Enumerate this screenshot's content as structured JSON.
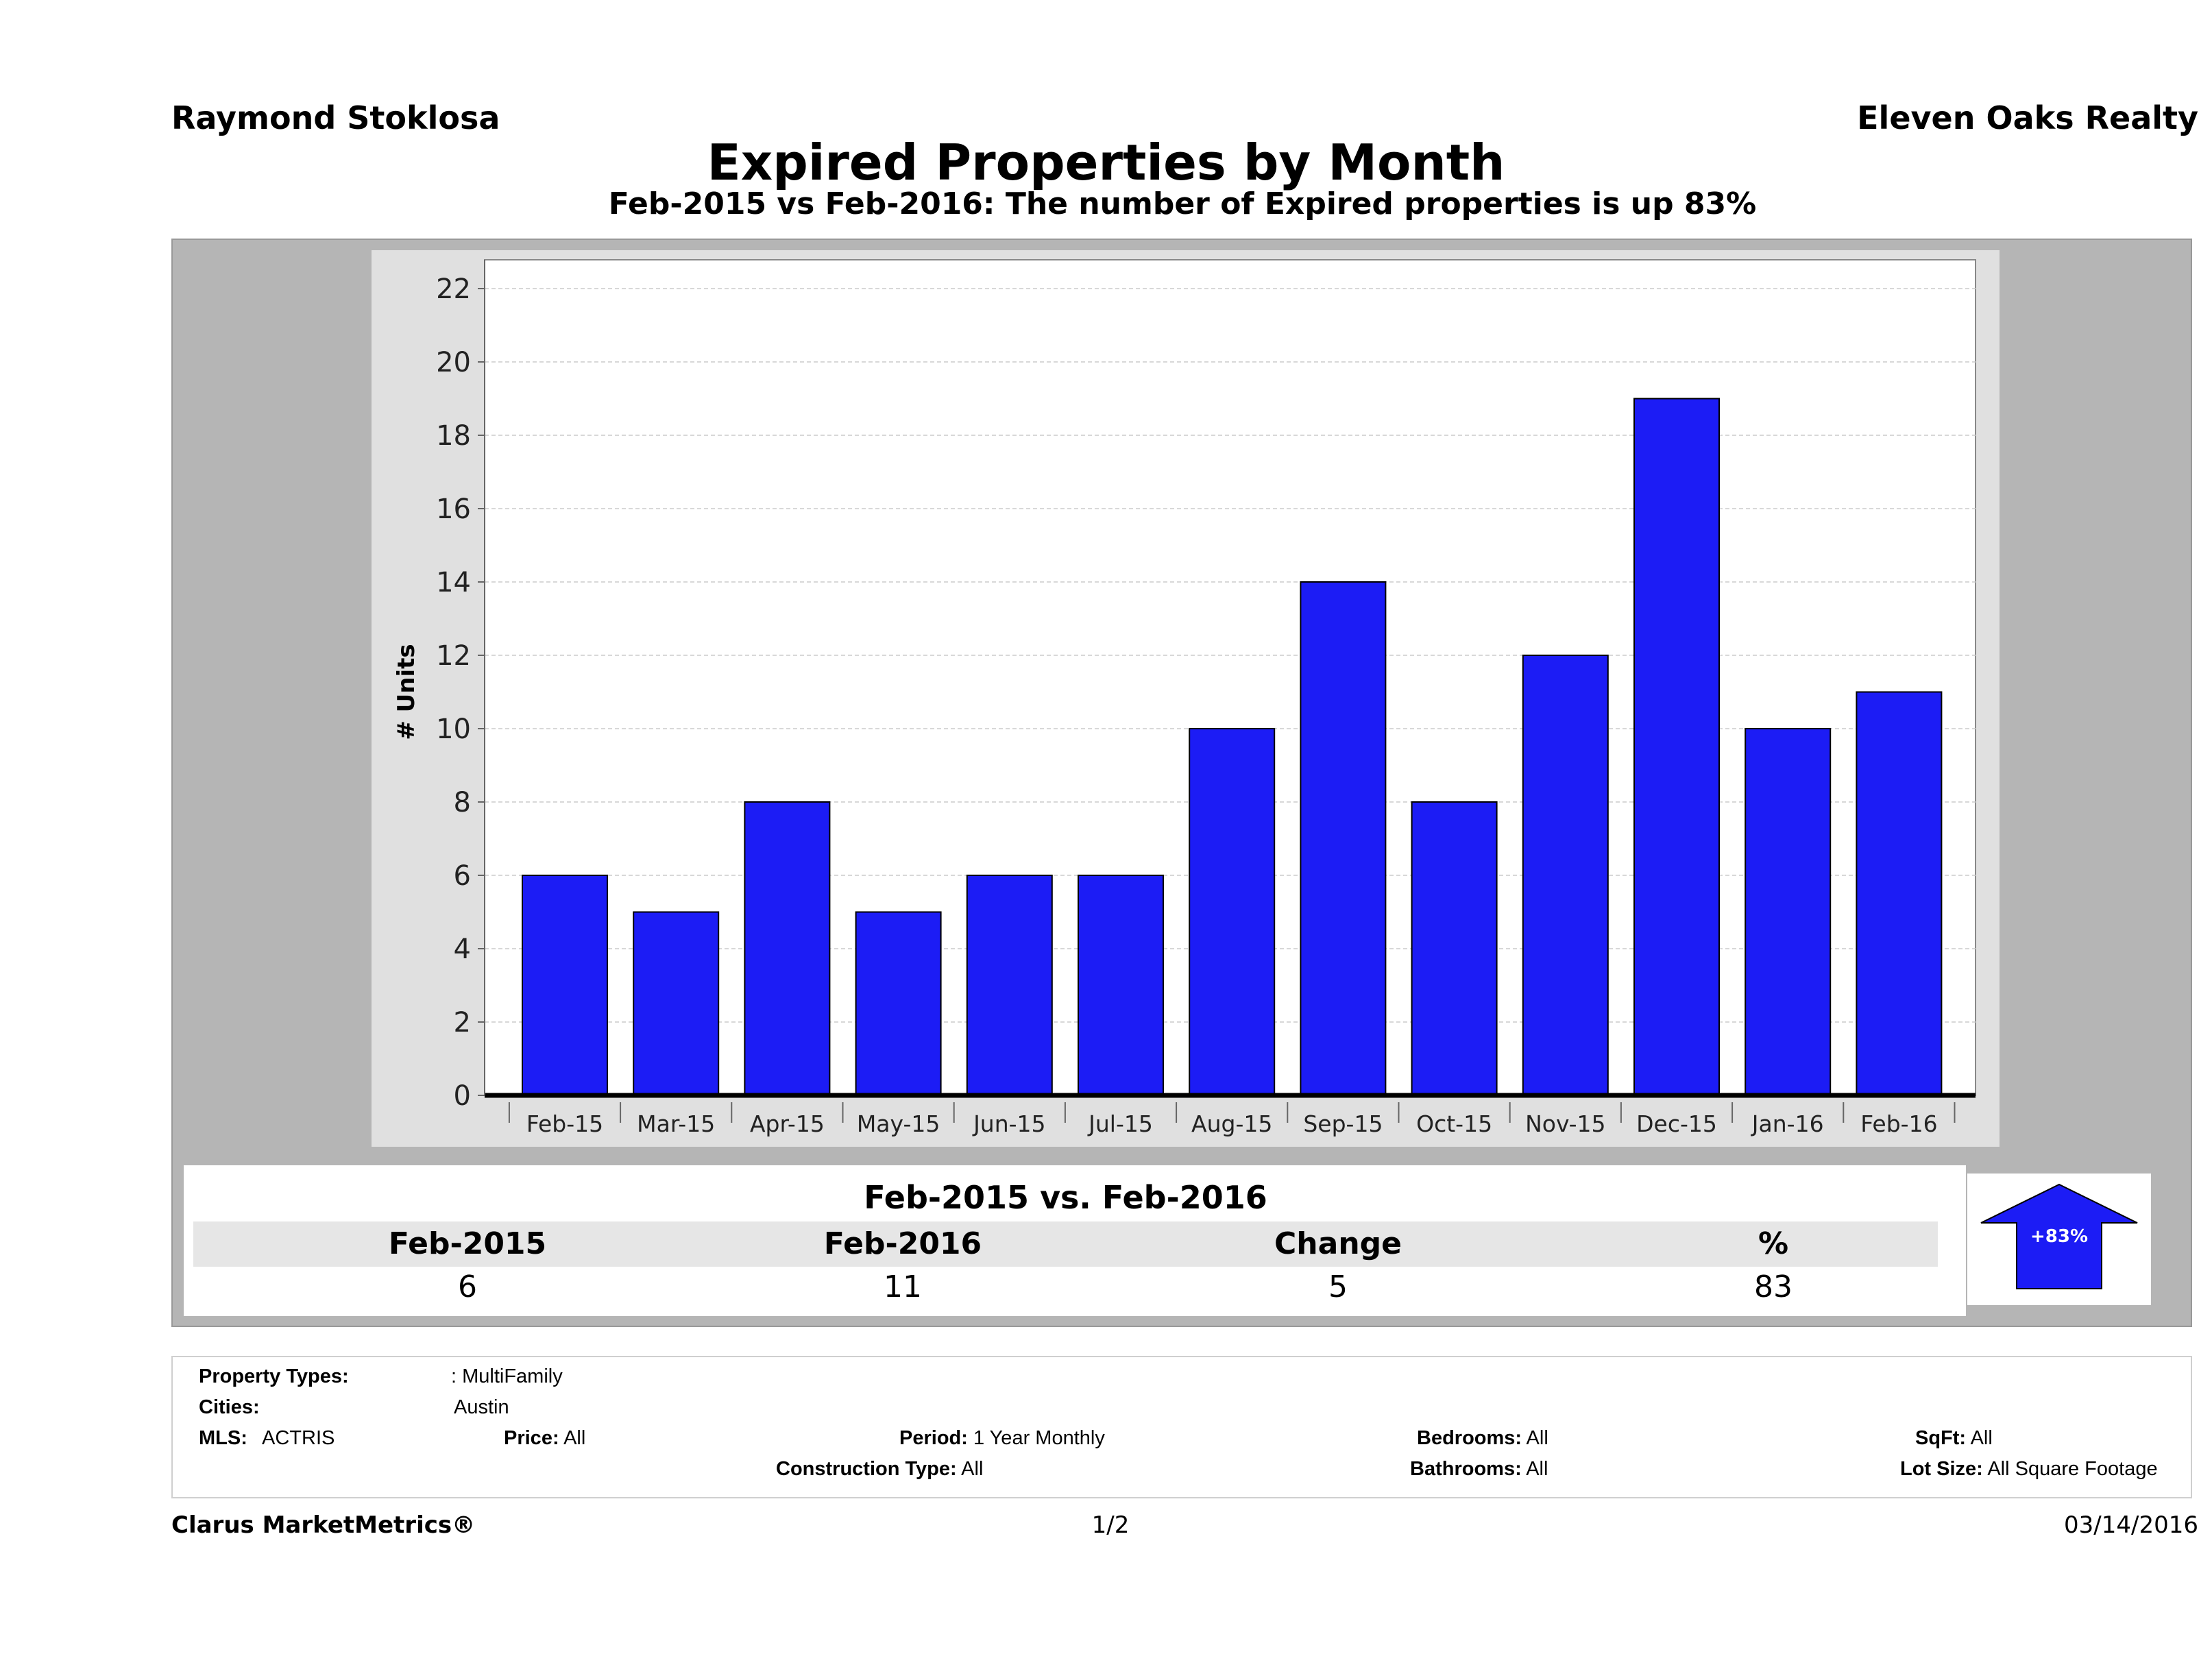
{
  "header": {
    "agent": "Raymond Stoklosa",
    "company": "Eleven Oaks Realty",
    "title": "Expired Properties by Month",
    "subtitle": "Feb-2015 vs Feb-2016: The number of Expired  properties is up 83%"
  },
  "chart_data": {
    "type": "bar",
    "categories": [
      "Feb-15",
      "Mar-15",
      "Apr-15",
      "May-15",
      "Jun-15",
      "Jul-15",
      "Aug-15",
      "Sep-15",
      "Oct-15",
      "Nov-15",
      "Dec-15",
      "Jan-16",
      "Feb-16"
    ],
    "values": [
      6,
      5,
      8,
      5,
      6,
      6,
      10,
      14,
      8,
      12,
      19,
      10,
      11
    ],
    "ylabel": "# Units",
    "ylim": [
      0,
      22
    ],
    "yticks": [
      0,
      2,
      4,
      6,
      8,
      10,
      12,
      14,
      16,
      18,
      20,
      22
    ],
    "grid": true,
    "bar_color": "#1c1cf5"
  },
  "summary": {
    "title": "Feb-2015 vs. Feb-2016",
    "headers": [
      "Feb-2015",
      "Feb-2016",
      "Change",
      "%"
    ],
    "values": [
      "6",
      "11",
      "5",
      "83"
    ],
    "badge": "+83%",
    "badge_color": "#1c1cf5"
  },
  "filters": {
    "property_types_label": "Property Types:",
    "property_types_value": ": MultiFamily",
    "cities_label": "Cities:",
    "cities_value": "Austin",
    "mls_label": "MLS:",
    "mls_value": "ACTRIS",
    "price_label": "Price:",
    "price_value": "All",
    "period_label": "Period:",
    "period_value": "1 Year Monthly",
    "construction_label": "Construction Type:",
    "construction_value": "All",
    "bedrooms_label": "Bedrooms:",
    "bedrooms_value": "All",
    "bathrooms_label": "Bathrooms:",
    "bathrooms_value": "All",
    "sqft_label": "SqFt:",
    "sqft_value": "All",
    "lotsize_label": "Lot Size:",
    "lotsize_value": "All Square Footage"
  },
  "footer": {
    "brand": "Clarus MarketMetrics®",
    "page": "1/2",
    "date": "03/14/2016"
  }
}
